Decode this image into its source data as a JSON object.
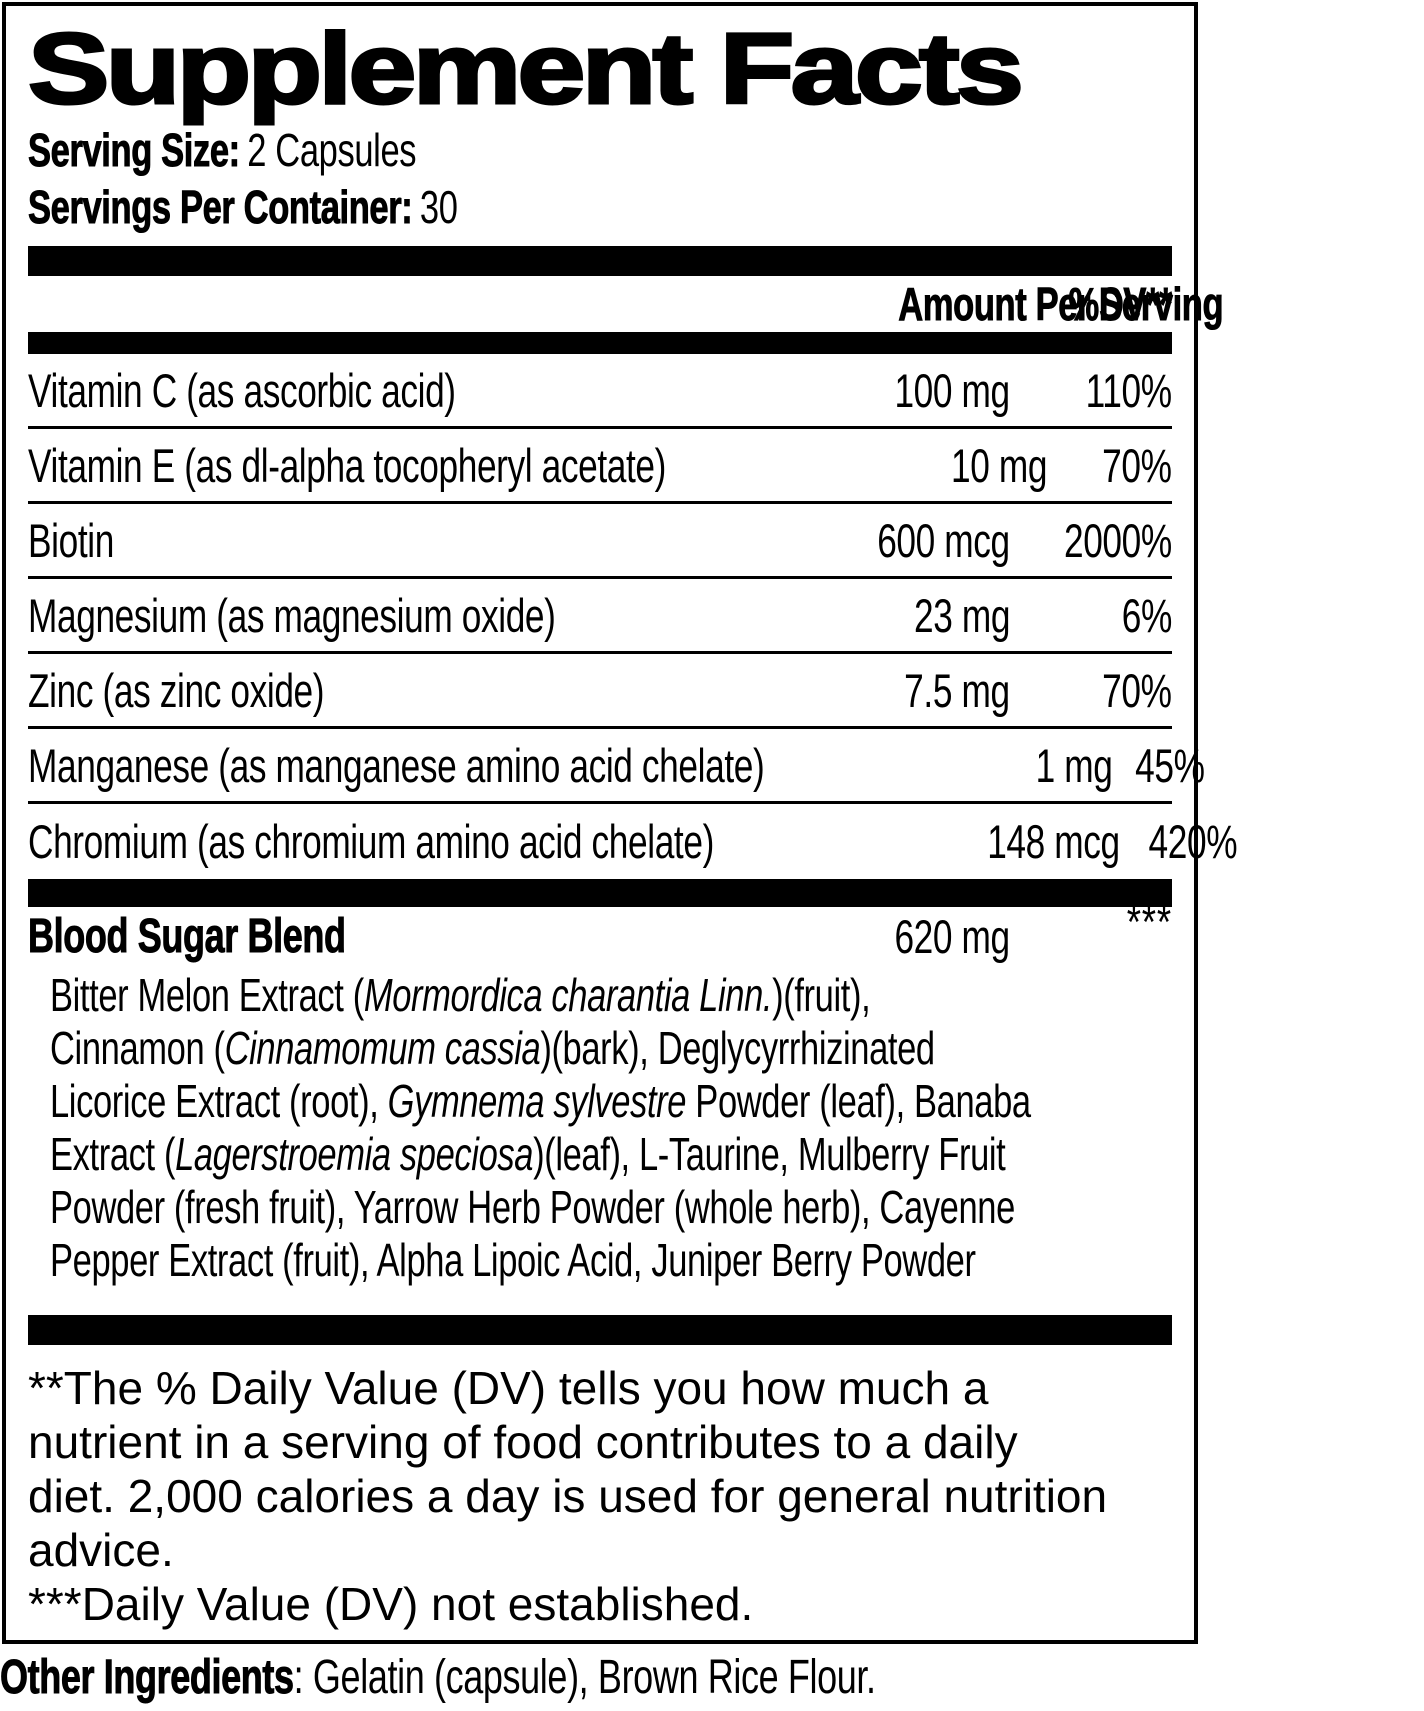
{
  "colors": {
    "text": "#000000",
    "background": "#ffffff"
  },
  "title": "Supplement Facts",
  "serving": {
    "size_label": "Serving Size:",
    "size_value": "2 Capsules",
    "per_container_label": "Servings Per Container:",
    "per_container_value": "30"
  },
  "table": {
    "amount_header": "Amount Per Serving",
    "dv_header": "%DV**",
    "rows": [
      {
        "name": "Vitamin C (as ascorbic acid)",
        "amount": "100 mg",
        "dv": "110%"
      },
      {
        "name": "Vitamin E (as dl-alpha tocopheryl acetate)",
        "amount": "10 mg",
        "dv": "70%"
      },
      {
        "name": "Biotin",
        "amount": "600 mcg",
        "dv": "2000%"
      },
      {
        "name": "Magnesium (as magnesium oxide)",
        "amount": "23 mg",
        "dv": "6%"
      },
      {
        "name": "Zinc (as zinc oxide)",
        "amount": "7.5 mg",
        "dv": "70%"
      },
      {
        "name": "Manganese (as manganese amino acid chelate)",
        "amount": "1 mg",
        "dv": "45%"
      },
      {
        "name": "Chromium (as chromium amino acid chelate)",
        "amount": "148 mcg",
        "dv": "420%"
      }
    ]
  },
  "blend": {
    "name": "Blood Sugar Blend",
    "amount": "620 mg",
    "dv": "***",
    "lines": [
      {
        "segments": [
          {
            "text": "Bitter Melon Extract ("
          },
          {
            "text": "Mormordica charantia Linn.",
            "italic": true
          },
          {
            "text": ")(fruit),"
          }
        ]
      },
      {
        "segments": [
          {
            "text": "Cinnamon ("
          },
          {
            "text": "Cinnamomum cassia",
            "italic": true
          },
          {
            "text": ")(bark), Deglycyrrhizinated"
          }
        ]
      },
      {
        "segments": [
          {
            "text": "Licorice Extract (root), "
          },
          {
            "text": "Gymnema sylvestre",
            "italic": true
          },
          {
            "text": " Powder (leaf), Banaba"
          }
        ]
      },
      {
        "segments": [
          {
            "text": "Extract ("
          },
          {
            "text": "Lagerstroemia speciosa",
            "italic": true
          },
          {
            "text": ")(leaf), L-Taurine, Mulberry Fruit"
          }
        ]
      },
      {
        "segments": [
          {
            "text": "Powder (fresh fruit), Yarrow Herb Powder (whole herb), Cayenne"
          }
        ]
      },
      {
        "segments": [
          {
            "text": "Pepper Extract (fruit), Alpha Lipoic Acid, Juniper Berry Powder"
          }
        ]
      }
    ]
  },
  "footnotes": {
    "dv_note": "**The % Daily Value (DV) tells you how much a nutrient in a serving of food contributes to a daily diet. 2,000 calories a day is used for general nutrition advice.",
    "not_established_note": "***Daily Value (DV) not established."
  },
  "other_ingredients": {
    "label": "Other Ingredients",
    "value": ": Gelatin (capsule), Brown Rice Flour."
  }
}
